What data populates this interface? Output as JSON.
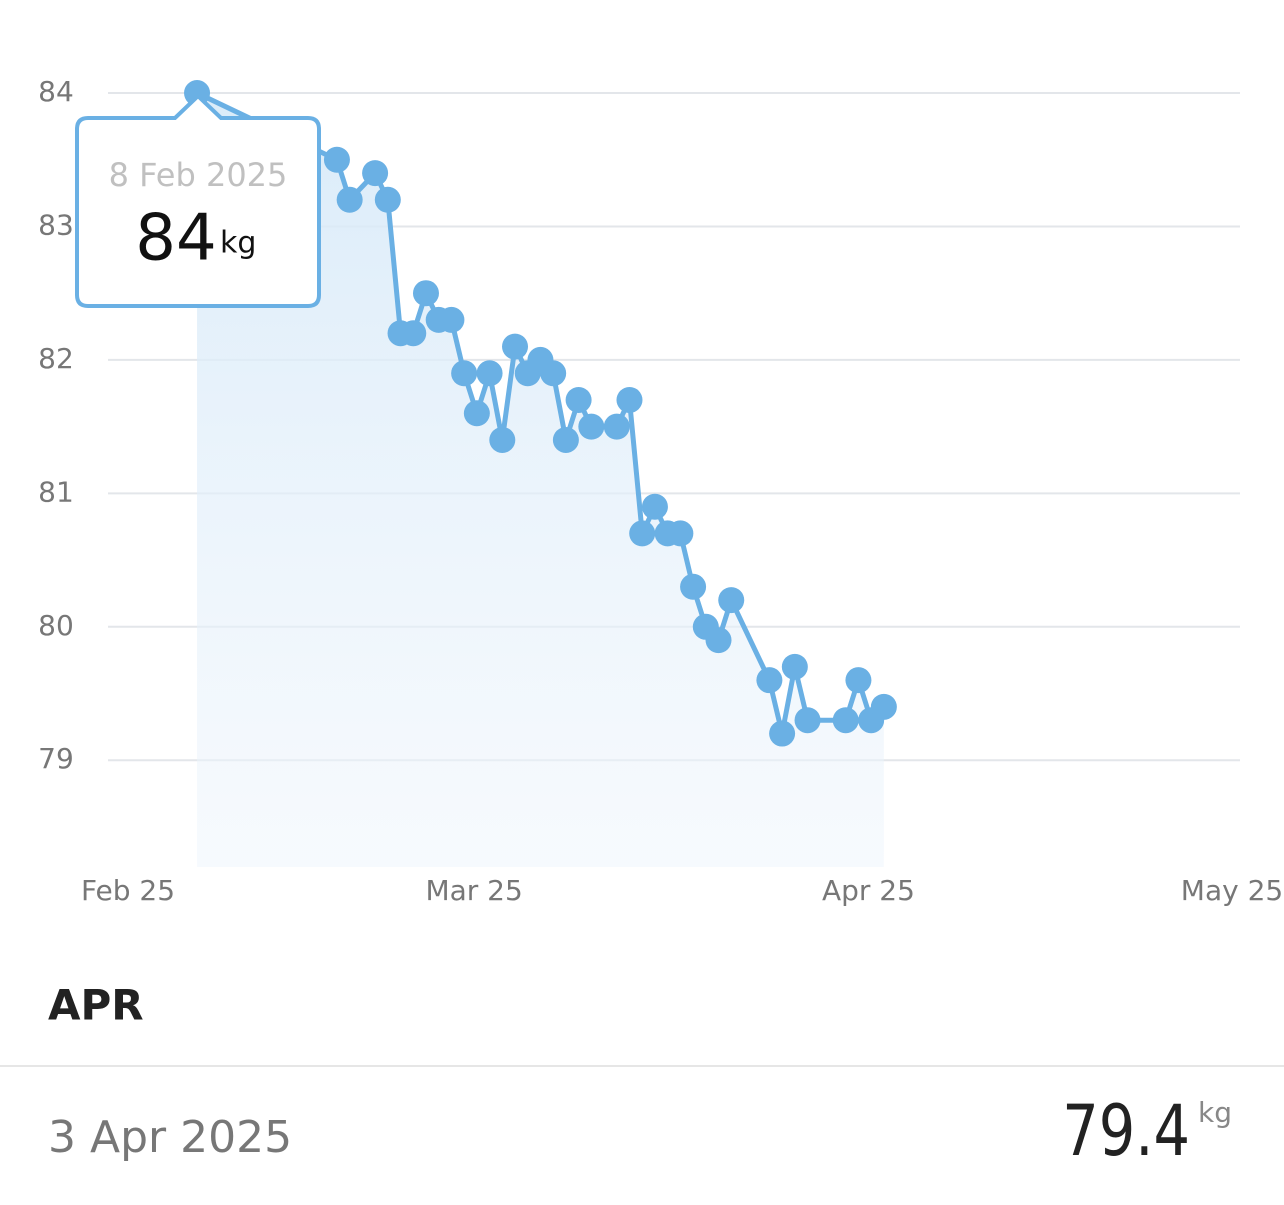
{
  "chart_data": {
    "type": "line",
    "x": [
      "2025-02-08",
      "2025-02-19",
      "2025-02-20",
      "2025-02-22",
      "2025-02-23",
      "2025-02-24",
      "2025-02-25",
      "2025-02-26",
      "2025-02-27",
      "2025-02-28",
      "2025-03-01",
      "2025-03-02",
      "2025-03-03",
      "2025-03-04",
      "2025-03-05",
      "2025-03-06",
      "2025-03-07",
      "2025-03-08",
      "2025-03-09",
      "2025-03-10",
      "2025-03-11",
      "2025-03-13",
      "2025-03-14",
      "2025-03-15",
      "2025-03-16",
      "2025-03-17",
      "2025-03-18",
      "2025-03-19",
      "2025-03-20",
      "2025-03-21",
      "2025-03-22",
      "2025-03-25",
      "2025-03-26",
      "2025-03-27",
      "2025-03-28",
      "2025-03-31",
      "2025-04-01",
      "2025-04-02",
      "2025-04-03"
    ],
    "values": [
      84,
      83.5,
      83.2,
      83.4,
      83.2,
      82.2,
      82.2,
      82.5,
      82.3,
      82.3,
      81.9,
      81.6,
      81.9,
      81.4,
      82.1,
      81.9,
      82.0,
      81.9,
      81.4,
      81.7,
      81.5,
      81.5,
      81.7,
      80.7,
      80.9,
      80.7,
      80.7,
      80.3,
      80.0,
      79.9,
      80.2,
      79.6,
      79.2,
      79.7,
      79.3,
      79.3,
      79.6,
      79.3,
      79.4
    ],
    "color": "#6ab0e4",
    "xlim": [
      "2025-02-01",
      "2025-05-01"
    ],
    "xticks": [
      {
        "value": "2025-02-01",
        "label": "Feb 25"
      },
      {
        "value": "2025-03-01",
        "label": "Mar 25"
      },
      {
        "value": "2025-04-01",
        "label": "Apr 25"
      },
      {
        "value": "2025-05-01",
        "label": "May 25"
      }
    ],
    "ylim": [
      78.2,
      84.3
    ],
    "yticks": [
      79,
      80,
      81,
      82,
      83,
      84
    ],
    "grid": true,
    "area": true,
    "tooltip": {
      "date": "8 Feb 2025",
      "value": 84,
      "unit": "kg"
    }
  },
  "list": {
    "section": "APR",
    "entries": [
      {
        "date": "3 Apr 2025",
        "value": 79.4,
        "unit": "kg"
      }
    ]
  }
}
